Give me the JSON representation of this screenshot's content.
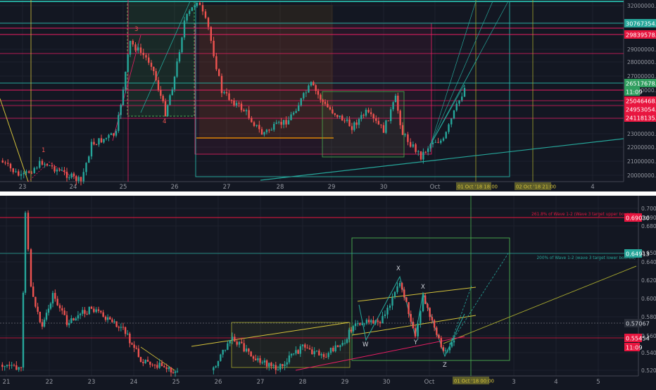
{
  "colors": {
    "bg": "#131722",
    "grid": "#1e222d",
    "axis_text": "#9598a1",
    "up": "#26a69a",
    "down": "#ef5350",
    "teal": "#26a69a",
    "red": "#e91e63",
    "pink": "#ff6b8a",
    "orange": "#ff9800",
    "olive": "#a4a52e",
    "yellow": "#d4c23a",
    "green_box": "#4caf50"
  },
  "top": {
    "x_labels": [
      "23",
      "24",
      "25",
      "26",
      "27",
      "28",
      "29",
      "30",
      "Oct",
      "4"
    ],
    "y_labels": [
      "32000000.0000",
      "31000000.0000",
      "30000000.0000",
      "29000000.0000",
      "28000000.0000",
      "27000000.0000",
      "26000000.0000",
      "25000000.0000",
      "24000000.0000",
      "23000000.0000",
      "22000000.0000",
      "21000000.0000",
      "20000000.0000"
    ],
    "price_tags": [
      {
        "text": "30767354.1094",
        "kind": "teal"
      },
      {
        "text": "29839578.2887",
        "kind": "red"
      },
      {
        "text": "26517678.4750",
        "kind": "green"
      },
      {
        "text": "11:09",
        "kind": "green"
      },
      {
        "text": "25046468.7017",
        "kind": "red"
      },
      {
        "text": "24953054.8585",
        "kind": "red"
      },
      {
        "text": "24118135.1379",
        "kind": "red"
      }
    ],
    "wave_labels": [
      "3",
      "4",
      "1"
    ],
    "time_tags": [
      "01 Oct '18 18:00",
      "02 Oct '18 21:00"
    ]
  },
  "bottom": {
    "x_labels": [
      "21",
      "22",
      "23",
      "24",
      "25",
      "26",
      "27",
      "28",
      "29",
      "30",
      "Oct",
      "3",
      "4",
      "5"
    ],
    "y_labels": [
      "0.70000",
      "0.69000",
      "0.68000",
      "0.65000",
      "0.64000",
      "0.62000",
      "0.60000",
      "0.58000",
      "0.56000",
      "0.54000",
      "0.52000"
    ],
    "price_tags": [
      {
        "text": "0.69030",
        "kind": "red"
      },
      {
        "text": "0.64913",
        "kind": "teal"
      },
      {
        "text": "0.57067",
        "kind": "gray"
      },
      {
        "text": "0.55454",
        "kind": "red"
      },
      {
        "text": "11:09",
        "kind": "red"
      }
    ],
    "annotations": [
      "261.8% of Wave 1-2 (Wave 3 target upper bounds)",
      "200% of Wave 1-2 (wave 3 target lower bounds)"
    ],
    "wave_labels": [
      "X",
      "X",
      "W",
      "Y",
      "Z"
    ],
    "time_tags": [
      "01 Oct '18 00:00"
    ]
  },
  "chart_data": [
    {
      "type": "candlestick",
      "pane": "top",
      "x": [
        "23",
        "24",
        "25",
        "26",
        "27",
        "28",
        "29",
        "30",
        "Oct",
        "4"
      ],
      "ylim": [
        20000000,
        32000000
      ],
      "closes_approx": [
        21200000,
        20500000,
        21900000,
        29500000,
        31000000,
        26000000,
        24200000,
        23000000,
        24100000,
        23600000,
        25000000,
        23400000,
        24300000,
        21400000,
        22400000,
        26500000
      ],
      "horizontal_levels": [
        30767354.1094,
        29839578.2887,
        26517678.475,
        25046468.7017,
        24953054.8585,
        24118135.1379
      ]
    },
    {
      "type": "candlestick",
      "pane": "bottom",
      "x": [
        "21",
        "22",
        "23",
        "24",
        "25",
        "26",
        "27",
        "28",
        "29",
        "30",
        "Oct",
        "3",
        "4",
        "5"
      ],
      "ylim": [
        0.515,
        0.705
      ],
      "closes_approx": [
        0.53,
        0.69,
        0.59,
        0.6,
        0.57,
        0.58,
        0.535,
        0.52,
        0.53,
        0.555,
        0.54,
        0.55,
        0.54,
        0.56,
        0.62,
        0.585,
        0.605,
        0.54,
        0.555
      ],
      "horizontal_levels": [
        0.6903,
        0.64913,
        0.57067,
        0.55454
      ]
    }
  ]
}
